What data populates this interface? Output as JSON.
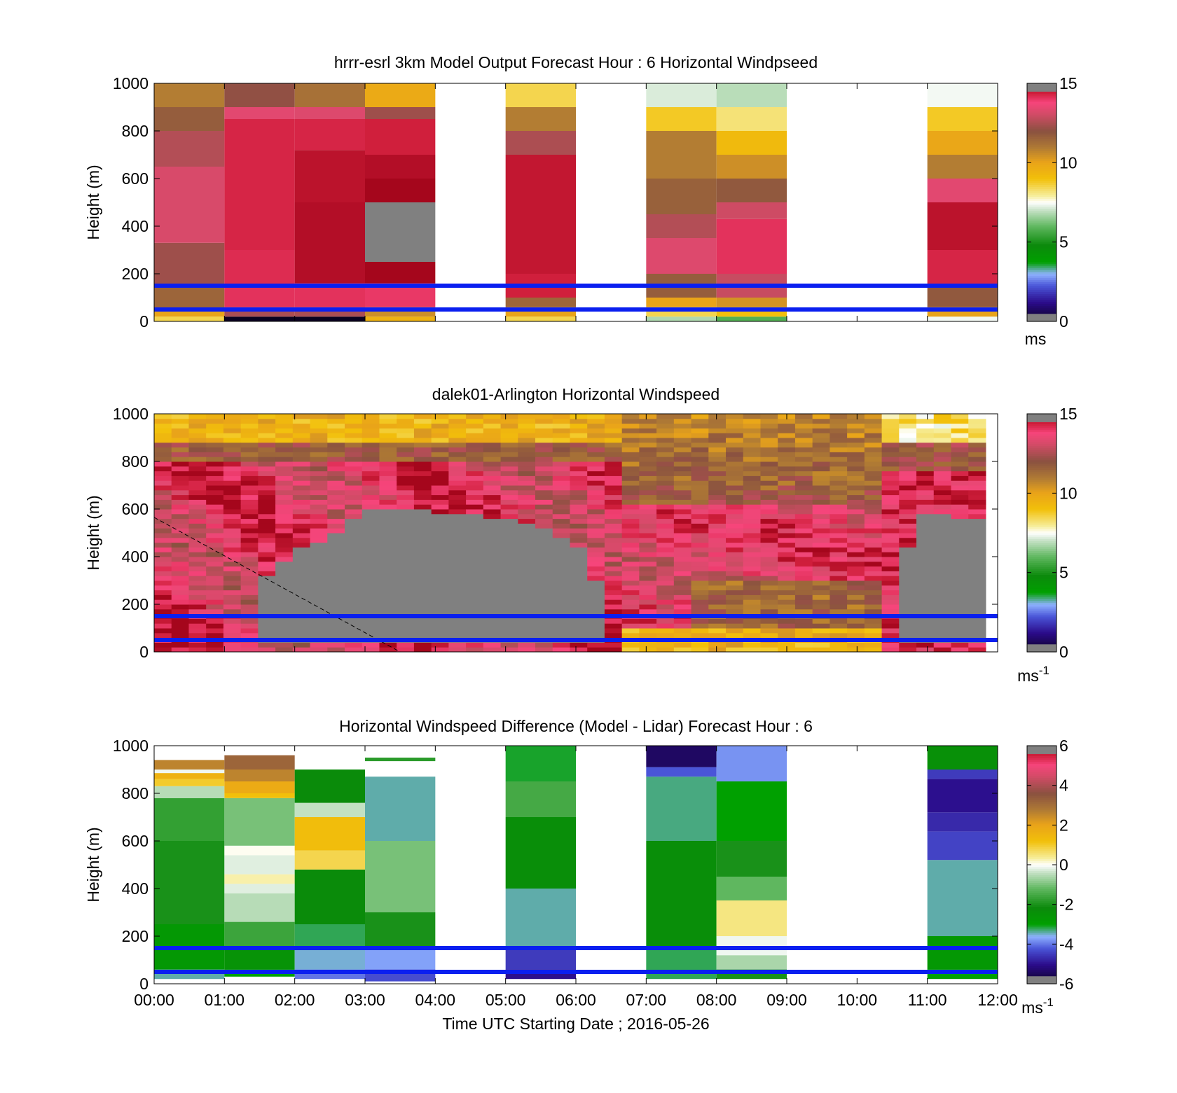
{
  "chart_data": [
    {
      "type": "heatmap",
      "title": "hrrr-esrl 3km Model Output   Forecast Hour : 6 Horizontal Windpseed",
      "ylabel": "Height (m)",
      "xlim": [
        0,
        12
      ],
      "ylim": [
        0,
        1000
      ],
      "yticks": [
        "0",
        "200",
        "400",
        "600",
        "800",
        "1000"
      ],
      "colorbar": {
        "ticks": [
          "0",
          "5",
          "10",
          "15"
        ],
        "range": [
          0,
          15
        ],
        "unit": "ms",
        "unit_sup": ""
      },
      "columns": [
        {
          "x0": 0,
          "x1": 1,
          "bottom": 0,
          "top": 1000,
          "levels": [
            [
              0,
              20,
              8.5
            ],
            [
              20,
              50,
              10
            ],
            [
              50,
              150,
              11.5
            ],
            [
              150,
              330,
              12.3
            ],
            [
              330,
              650,
              13.2
            ],
            [
              650,
              800,
              12.6
            ],
            [
              800,
              900,
              11.7
            ],
            [
              900,
              1000,
              10.9
            ]
          ]
        },
        {
          "x0": 1,
          "x1": 2,
          "bottom": 0,
          "top": 1000,
          "levels": [
            [
              0,
              20,
              0
            ],
            [
              20,
              60,
              12.5
            ],
            [
              60,
              150,
              14.1
            ],
            [
              150,
              300,
              14.2
            ],
            [
              300,
              850,
              14.3
            ],
            [
              850,
              900,
              13.4
            ],
            [
              900,
              1000,
              12.1
            ]
          ]
        },
        {
          "x0": 2,
          "x1": 3,
          "bottom": 0,
          "top": 1000,
          "levels": [
            [
              0,
              20,
              0
            ],
            [
              20,
              60,
              12.5
            ],
            [
              60,
              160,
              14.1
            ],
            [
              160,
              500,
              14.8
            ],
            [
              500,
              720,
              14.7
            ],
            [
              720,
              850,
              14.3
            ],
            [
              850,
              900,
              13.3
            ],
            [
              900,
              1000,
              11.2
            ]
          ]
        },
        {
          "x0": 3,
          "x1": 4,
          "bottom": 0,
          "top": 1000,
          "levels": [
            [
              0,
              20,
              9.5
            ],
            [
              20,
              60,
              10.5
            ],
            [
              60,
              160,
              14.0
            ],
            [
              160,
              250,
              15.0
            ],
            [
              250,
              500,
              -1
            ],
            [
              500,
              600,
              15.1
            ],
            [
              600,
              700,
              14.8
            ],
            [
              700,
              850,
              14.4
            ],
            [
              850,
              900,
              12.3
            ],
            [
              900,
              1000,
              9.8
            ]
          ]
        },
        {
          "x0": 5,
          "x1": 6,
          "bottom": 0,
          "top": 1000,
          "levels": [
            [
              0,
              20,
              8.5
            ],
            [
              20,
              60,
              10.0
            ],
            [
              60,
              100,
              11.5
            ],
            [
              100,
              200,
              14.4
            ],
            [
              200,
              700,
              14.6
            ],
            [
              700,
              800,
              12.5
            ],
            [
              800,
              900,
              10.9
            ],
            [
              900,
              1000,
              8.5
            ]
          ]
        },
        {
          "x0": 7,
          "x1": 8,
          "bottom": 0,
          "top": 1000,
          "levels": [
            [
              0,
              20,
              6.8
            ],
            [
              20,
              60,
              8.5
            ],
            [
              60,
              100,
              10.0
            ],
            [
              100,
              200,
              11.7
            ],
            [
              200,
              350,
              13.3
            ],
            [
              350,
              450,
              12.6
            ],
            [
              450,
              600,
              11.6
            ],
            [
              600,
              800,
              10.9
            ],
            [
              800,
              900,
              8.8
            ],
            [
              900,
              1000,
              7.2
            ]
          ]
        },
        {
          "x0": 8,
          "x1": 9,
          "bottom": 0,
          "top": 1000,
          "levels": [
            [
              0,
              20,
              5.8
            ],
            [
              20,
              60,
              9.0
            ],
            [
              60,
              100,
              10.4
            ],
            [
              100,
              200,
              12.9
            ],
            [
              200,
              430,
              14.1
            ],
            [
              430,
              500,
              13.0
            ],
            [
              500,
              600,
              11.8
            ],
            [
              600,
              700,
              10.5
            ],
            [
              700,
              800,
              9.2
            ],
            [
              800,
              900,
              8.2
            ],
            [
              900,
              1000,
              6.9
            ]
          ]
        },
        {
          "x0": 11,
          "x1": 12,
          "bottom": 0,
          "top": 1000,
          "levels": [
            [
              0,
              20,
              7.4
            ],
            [
              20,
              60,
              10.0
            ],
            [
              60,
              150,
              11.8
            ],
            [
              150,
              300,
              14.3
            ],
            [
              300,
              500,
              14.7
            ],
            [
              500,
              600,
              13.4
            ],
            [
              600,
              700,
              10.9
            ],
            [
              700,
              800,
              9.9
            ],
            [
              800,
              900,
              8.8
            ],
            [
              900,
              1000,
              7.4
            ]
          ]
        }
      ],
      "lines": [
        {
          "y": 150,
          "color": "#0a1ff0"
        },
        {
          "y": 50,
          "color": "#0a1ff0"
        }
      ]
    },
    {
      "type": "heatmap",
      "title": "dalek01-Arlington  Horizontal Windspeed",
      "ylabel": "Height (m)",
      "xlim": [
        0,
        12
      ],
      "ylim": [
        0,
        1000
      ],
      "yticks": [
        "0",
        "200",
        "400",
        "600",
        "800",
        "1000"
      ],
      "colorbar": {
        "ticks": [
          "0",
          "5",
          "10",
          "15"
        ],
        "range": [
          0,
          15
        ],
        "unit": "ms",
        "unit_sup": "-1"
      },
      "lidar": {
        "x0": 0,
        "x1": 11.83,
        "bottom": 0,
        "top": 1000,
        "gray_boundary": [
          [
            0,
            null
          ],
          [
            1.25,
            null
          ],
          [
            1.5,
            300
          ],
          [
            2.0,
            420
          ],
          [
            2.5,
            480
          ],
          [
            3.0,
            590
          ],
          [
            3.5,
            600
          ],
          [
            4.0,
            590
          ],
          [
            4.5,
            580
          ],
          [
            5.0,
            560
          ],
          [
            5.5,
            520
          ],
          [
            6.0,
            450
          ],
          [
            6.3,
            300
          ],
          [
            6.4,
            200
          ],
          [
            6.6,
            null
          ],
          [
            10.5,
            null
          ],
          [
            10.6,
            300
          ],
          [
            10.8,
            520
          ],
          [
            11.0,
            580
          ],
          [
            11.83,
            560
          ]
        ],
        "gray_floor": 40
      },
      "dashed_line": [
        [
          0,
          565
        ],
        [
          3.5,
          0
        ]
      ],
      "lines": [
        {
          "y": 150,
          "color": "#0a1ff0"
        },
        {
          "y": 50,
          "color": "#0a1ff0"
        }
      ]
    },
    {
      "type": "heatmap",
      "title": "Horizontal Windspeed Difference (Model - Lidar) Forecast Hour : 6",
      "ylabel": "Height (m)",
      "xlabel": "Time UTC  Starting Date ; 2016-05-26",
      "xlim": [
        0,
        12
      ],
      "ylim": [
        0,
        1000
      ],
      "xticks": [
        "00:00",
        "01:00",
        "02:00",
        "03:00",
        "04:00",
        "05:00",
        "06:00",
        "07:00",
        "08:00",
        "09:00",
        "10:00",
        "11:00",
        "12:00"
      ],
      "yticks": [
        "0",
        "200",
        "400",
        "600",
        "800",
        "1000"
      ],
      "colorbar": {
        "ticks": [
          "-6",
          "-4",
          "-2",
          "0",
          "2",
          "4",
          "6"
        ],
        "range": [
          -6,
          6
        ],
        "unit": "ms",
        "unit_sup": "-1"
      },
      "columns": [
        {
          "x0": 0,
          "x1": 1,
          "bottom": 20,
          "top": 940,
          "levels": [
            [
              20,
              60,
              -3.4
            ],
            [
              60,
              250,
              -2.7
            ],
            [
              250,
              600,
              -2.0
            ],
            [
              600,
              780,
              -1.7
            ],
            [
              780,
              830,
              -0.5
            ],
            [
              830,
              860,
              1.0
            ],
            [
              860,
              885,
              1.6
            ],
            [
              885,
              900,
              -0.1
            ],
            [
              900,
              940,
              2.6
            ]
          ]
        },
        {
          "x0": 1,
          "x1": 2,
          "bottom": 30,
          "top": 960,
          "levels": [
            [
              30,
              60,
              -3.0
            ],
            [
              60,
              160,
              -2.5
            ],
            [
              160,
              260,
              -1.6
            ],
            [
              260,
              380,
              -0.5
            ],
            [
              380,
              420,
              -0.2
            ],
            [
              420,
              460,
              0.3
            ],
            [
              460,
              540,
              -0.2
            ],
            [
              540,
              580,
              0.05
            ],
            [
              580,
              780,
              -1.0
            ],
            [
              780,
              800,
              1.2
            ],
            [
              800,
              850,
              1.8
            ],
            [
              850,
              900,
              2.6
            ],
            [
              900,
              960,
              3.2
            ]
          ]
        },
        {
          "x0": 2,
          "x1": 3,
          "bottom": 20,
          "top": 900,
          "levels": [
            [
              20,
              60,
              -4.0
            ],
            [
              60,
              150,
              -3.5
            ],
            [
              150,
              250,
              -3.2
            ],
            [
              250,
              480,
              -2.2
            ],
            [
              480,
              560,
              0.8
            ],
            [
              560,
              700,
              1.3
            ],
            [
              700,
              760,
              -0.4
            ],
            [
              760,
              900,
              -2.2
            ]
          ]
        },
        {
          "x0": 3,
          "x1": 4,
          "bottom": 10,
          "top": 870,
          "levels": [
            [
              10,
              60,
              -4.3
            ],
            [
              60,
              150,
              -3.7
            ],
            [
              150,
              300,
              -2.0
            ],
            [
              300,
              600,
              -1.0
            ],
            [
              600,
              870,
              -3.4
            ]
          ]
        },
        {
          "x0": 3,
          "x1": 4,
          "bottom": 935,
          "top": 950,
          "levels": [
            [
              935,
              950,
              -1.8
            ]
          ]
        },
        {
          "x0": 5,
          "x1": 6,
          "bottom": 20,
          "top": 1000,
          "levels": [
            [
              20,
              60,
              -5.0
            ],
            [
              60,
              150,
              -4.5
            ],
            [
              150,
              400,
              -3.4
            ],
            [
              400,
              700,
              -2.3
            ],
            [
              700,
              850,
              -1.5
            ],
            [
              850,
              1000,
              -3.1
            ]
          ]
        },
        {
          "x0": 7,
          "x1": 8,
          "bottom": 20,
          "top": 1000,
          "levels": [
            [
              20,
              150,
              -3.2
            ],
            [
              150,
              600,
              -2.3
            ],
            [
              600,
              870,
              -3.3
            ],
            [
              870,
              910,
              -4.2
            ],
            [
              910,
              1000,
              -5.4
            ]
          ]
        },
        {
          "x0": 8,
          "x1": 9,
          "bottom": 20,
          "top": 1000,
          "levels": [
            [
              20,
              60,
              -2.0
            ],
            [
              60,
              120,
              -0.6
            ],
            [
              120,
              200,
              -0.1
            ],
            [
              200,
              350,
              0.5
            ],
            [
              350,
              450,
              -1.2
            ],
            [
              450,
              600,
              -2.0
            ],
            [
              600,
              850,
              -3.0
            ],
            [
              850,
              1000,
              -3.8
            ]
          ]
        },
        {
          "x0": 11,
          "x1": 12,
          "bottom": 20,
          "top": 1000,
          "levels": [
            [
              20,
              60,
              -3.0
            ],
            [
              60,
              200,
              -2.7
            ],
            [
              200,
              520,
              -3.4
            ],
            [
              520,
              640,
              -4.4
            ],
            [
              640,
              720,
              -4.7
            ],
            [
              720,
              860,
              -5.0
            ],
            [
              860,
              900,
              -4.5
            ],
            [
              900,
              1000,
              -2.4
            ]
          ]
        }
      ],
      "lines": [
        {
          "y": 150,
          "color": "#0a1ff0"
        },
        {
          "y": 50,
          "color": "#0a1ff0"
        }
      ]
    }
  ]
}
